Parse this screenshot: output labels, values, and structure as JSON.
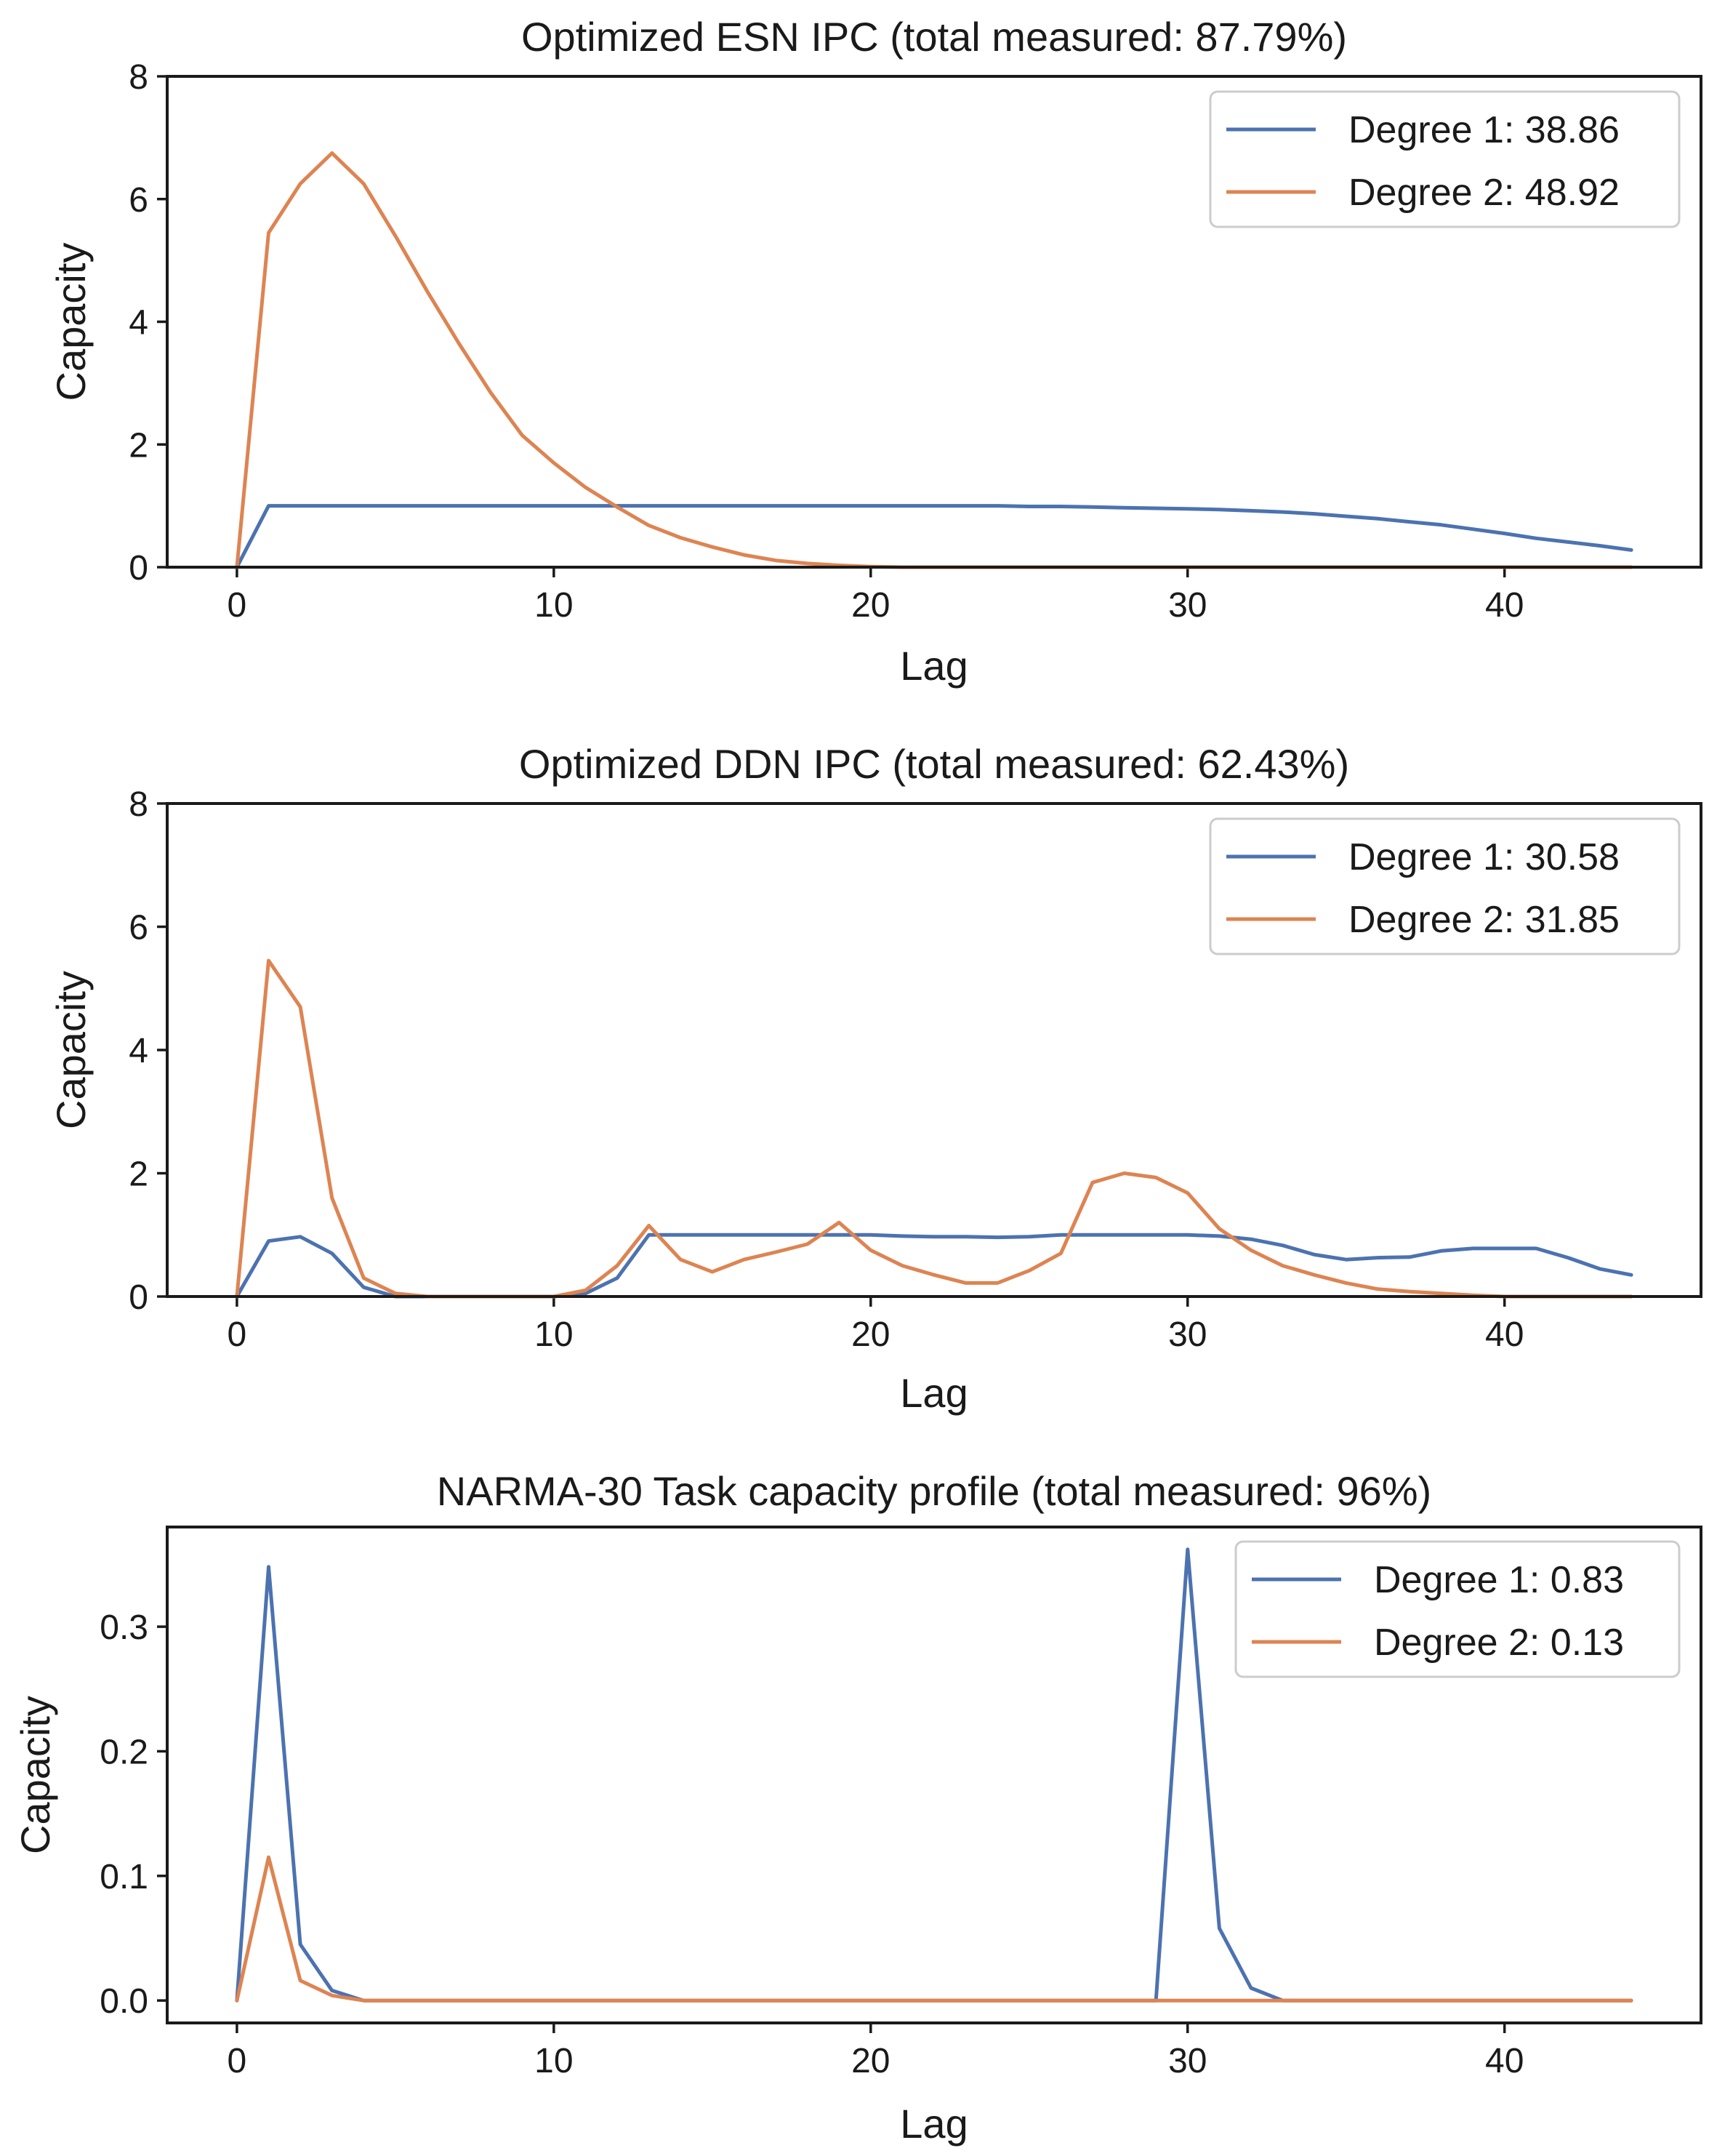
{
  "colors": {
    "degree1": "#4c72b0",
    "degree2": "#dd8452"
  },
  "chart_data": [
    {
      "type": "line",
      "title": "Optimized ESN IPC (total measured: 87.79%)",
      "xlabel": "Lag",
      "ylabel": "Capacity",
      "xlim": [
        -2.2,
        46.2
      ],
      "ylim": [
        0,
        8
      ],
      "xticks": [
        0,
        10,
        20,
        30,
        40
      ],
      "xtick_labels": [
        "0",
        "10",
        "20",
        "30",
        "40"
      ],
      "yticks": [
        0,
        2,
        4,
        6,
        8
      ],
      "ytick_labels": [
        "0",
        "2",
        "4",
        "6",
        "8"
      ],
      "legend_position": "top-right",
      "series": [
        {
          "name": "Degree 1",
          "legend_label": "Degree 1: 38.86",
          "color_key": "degree1",
          "x": [
            0,
            1,
            2,
            3,
            4,
            5,
            6,
            7,
            8,
            9,
            10,
            11,
            12,
            13,
            14,
            15,
            16,
            17,
            18,
            19,
            20,
            21,
            22,
            23,
            24,
            25,
            26,
            27,
            28,
            29,
            30,
            31,
            32,
            33,
            34,
            35,
            36,
            37,
            38,
            39,
            40,
            41,
            42,
            43,
            44
          ],
          "values": [
            0,
            1,
            1,
            1,
            1,
            1,
            1,
            1,
            1,
            1,
            1,
            1,
            1,
            1,
            1,
            1,
            1,
            1,
            1,
            1,
            1,
            1,
            1,
            1,
            1,
            0.99,
            0.99,
            0.98,
            0.97,
            0.96,
            0.95,
            0.94,
            0.92,
            0.9,
            0.87,
            0.83,
            0.79,
            0.74,
            0.69,
            0.62,
            0.55,
            0.47,
            0.41,
            0.35,
            0.28
          ]
        },
        {
          "name": "Degree 2",
          "legend_label": "Degree 2: 48.92",
          "color_key": "degree2",
          "x": [
            0,
            1,
            2,
            3,
            4,
            5,
            6,
            7,
            8,
            9,
            10,
            11,
            12,
            13,
            14,
            15,
            16,
            17,
            18,
            19,
            20,
            21,
            22,
            23,
            24,
            25,
            26,
            27,
            28,
            29,
            30,
            31,
            32,
            33,
            34,
            35,
            36,
            37,
            38,
            39,
            40,
            41,
            42,
            43,
            44
          ],
          "values": [
            0,
            5.45,
            6.25,
            6.75,
            6.25,
            5.4,
            4.5,
            3.65,
            2.85,
            2.15,
            1.7,
            1.3,
            0.98,
            0.68,
            0.48,
            0.33,
            0.2,
            0.11,
            0.06,
            0.03,
            0.01,
            0,
            0,
            0,
            0,
            0,
            0,
            0,
            0,
            0,
            0,
            0,
            0,
            0,
            0,
            0,
            0,
            0,
            0,
            0,
            0,
            0,
            0,
            0,
            0
          ]
        }
      ]
    },
    {
      "type": "line",
      "title": "Optimized DDN IPC (total measured: 62.43%)",
      "xlabel": "Lag",
      "ylabel": "Capacity",
      "xlim": [
        -2.2,
        46.2
      ],
      "ylim": [
        0,
        8
      ],
      "xticks": [
        0,
        10,
        20,
        30,
        40
      ],
      "xtick_labels": [
        "0",
        "10",
        "20",
        "30",
        "40"
      ],
      "yticks": [
        0,
        2,
        4,
        6,
        8
      ],
      "ytick_labels": [
        "0",
        "2",
        "4",
        "6",
        "8"
      ],
      "legend_position": "top-right",
      "series": [
        {
          "name": "Degree 1",
          "legend_label": "Degree 1: 30.58",
          "color_key": "degree1",
          "x": [
            0,
            1,
            2,
            3,
            4,
            5,
            6,
            7,
            8,
            9,
            10,
            11,
            12,
            13,
            14,
            15,
            16,
            17,
            18,
            19,
            20,
            21,
            22,
            23,
            24,
            25,
            26,
            27,
            28,
            29,
            30,
            31,
            32,
            33,
            34,
            35,
            36,
            37,
            38,
            39,
            40,
            41,
            42,
            43,
            44
          ],
          "values": [
            0,
            0.9,
            0.97,
            0.7,
            0.15,
            0,
            0,
            0,
            0,
            0,
            0,
            0.05,
            0.3,
            1.0,
            1.0,
            1.0,
            1.0,
            1.0,
            1.0,
            1.0,
            1.0,
            0.98,
            0.97,
            0.97,
            0.96,
            0.97,
            1.0,
            1.0,
            1.0,
            1.0,
            1.0,
            0.98,
            0.93,
            0.83,
            0.68,
            0.6,
            0.63,
            0.64,
            0.74,
            0.78,
            0.78,
            0.78,
            0.63,
            0.45,
            0.35
          ]
        },
        {
          "name": "Degree 2",
          "legend_label": "Degree 2: 31.85",
          "color_key": "degree2",
          "x": [
            0,
            1,
            2,
            3,
            4,
            5,
            6,
            7,
            8,
            9,
            10,
            11,
            12,
            13,
            14,
            15,
            16,
            17,
            18,
            19,
            20,
            21,
            22,
            23,
            24,
            25,
            26,
            27,
            28,
            29,
            30,
            31,
            32,
            33,
            34,
            35,
            36,
            37,
            38,
            39,
            40,
            41,
            42,
            43,
            44
          ],
          "values": [
            0,
            5.45,
            4.7,
            1.6,
            0.3,
            0.05,
            0,
            0,
            0,
            0,
            0,
            0.1,
            0.5,
            1.15,
            0.6,
            0.4,
            0.6,
            0.72,
            0.85,
            1.2,
            0.75,
            0.5,
            0.35,
            0.22,
            0.22,
            0.42,
            0.7,
            1.85,
            2.0,
            1.93,
            1.68,
            1.1,
            0.75,
            0.5,
            0.35,
            0.22,
            0.12,
            0.08,
            0.05,
            0.02,
            0,
            0,
            0,
            0,
            0
          ]
        }
      ]
    },
    {
      "type": "line",
      "title": "NARMA-30 Task capacity profile (total measured: 96%)",
      "xlabel": "Lag",
      "ylabel": "Capacity",
      "xlim": [
        -2.2,
        46.2
      ],
      "ylim": [
        -0.018,
        0.38
      ],
      "xticks": [
        0,
        10,
        20,
        30,
        40
      ],
      "xtick_labels": [
        "0",
        "10",
        "20",
        "30",
        "40"
      ],
      "yticks": [
        0.0,
        0.1,
        0.2,
        0.3
      ],
      "ytick_labels": [
        "0.0",
        "0.1",
        "0.2",
        "0.3"
      ],
      "legend_position": "top-right",
      "series": [
        {
          "name": "Degree 1",
          "legend_label": "Degree 1: 0.83",
          "color_key": "degree1",
          "x": [
            0,
            1,
            2,
            3,
            4,
            5,
            6,
            7,
            8,
            9,
            10,
            11,
            12,
            13,
            14,
            15,
            16,
            17,
            18,
            19,
            20,
            21,
            22,
            23,
            24,
            25,
            26,
            27,
            28,
            29,
            30,
            31,
            32,
            33,
            34,
            35,
            36,
            37,
            38,
            39,
            40,
            41,
            42,
            43,
            44
          ],
          "values": [
            0,
            0.348,
            0.045,
            0.008,
            0,
            0,
            0,
            0,
            0,
            0,
            0,
            0,
            0,
            0,
            0,
            0,
            0,
            0,
            0,
            0,
            0,
            0,
            0,
            0,
            0,
            0,
            0,
            0,
            0,
            0,
            0.362,
            0.058,
            0.01,
            0,
            0,
            0,
            0,
            0,
            0,
            0,
            0,
            0,
            0,
            0,
            0
          ]
        },
        {
          "name": "Degree 2",
          "legend_label": "Degree 2: 0.13",
          "color_key": "degree2",
          "x": [
            0,
            1,
            2,
            3,
            4,
            5,
            6,
            7,
            8,
            9,
            10,
            11,
            12,
            13,
            14,
            15,
            16,
            17,
            18,
            19,
            20,
            21,
            22,
            23,
            24,
            25,
            26,
            27,
            28,
            29,
            30,
            31,
            32,
            33,
            34,
            35,
            36,
            37,
            38,
            39,
            40,
            41,
            42,
            43,
            44
          ],
          "values": [
            0,
            0.115,
            0.016,
            0.004,
            0,
            0,
            0,
            0,
            0,
            0,
            0,
            0,
            0,
            0,
            0,
            0,
            0,
            0,
            0,
            0,
            0,
            0,
            0,
            0,
            0,
            0,
            0,
            0,
            0,
            0,
            0,
            0,
            0,
            0,
            0,
            0,
            0,
            0,
            0,
            0,
            0,
            0,
            0,
            0,
            0
          ]
        }
      ]
    }
  ]
}
